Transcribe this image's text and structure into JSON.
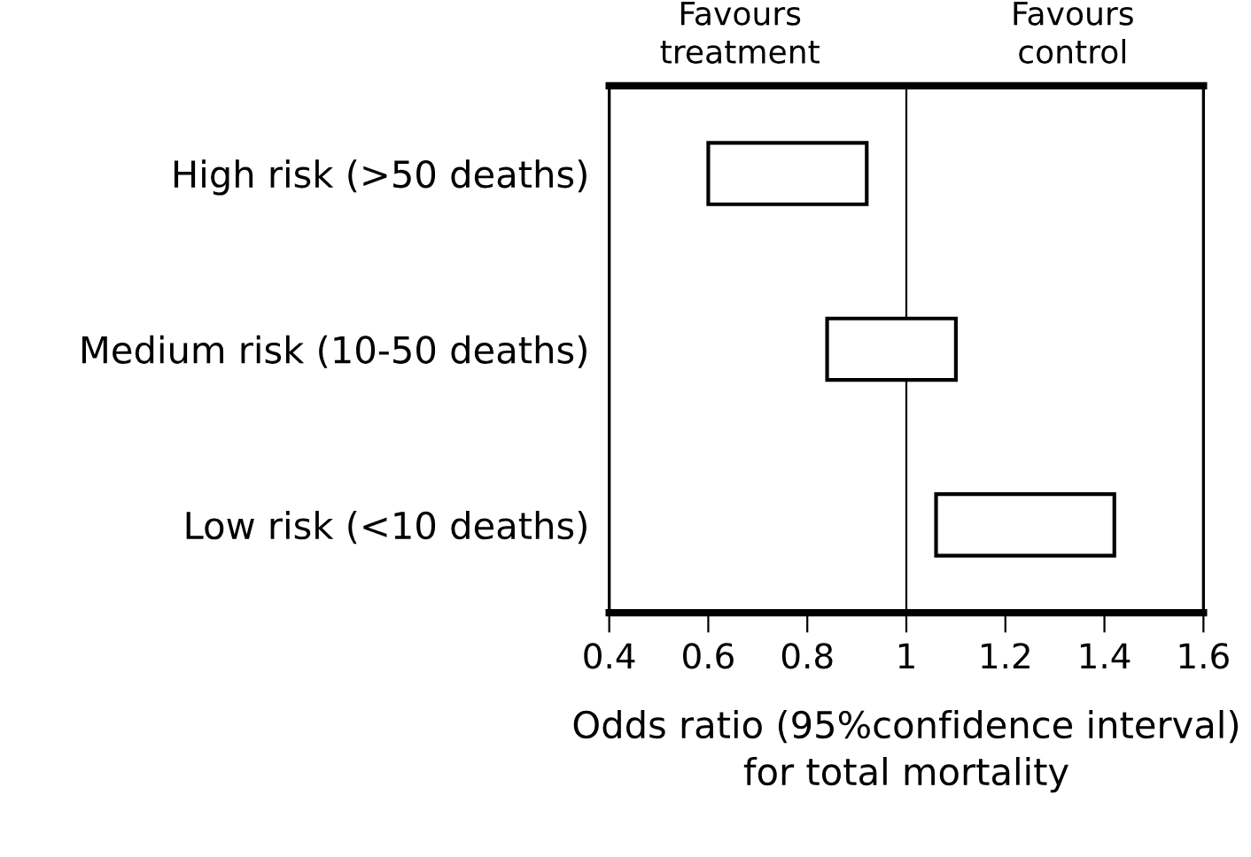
{
  "chart_data": {
    "type": "bar",
    "orientation": "horizontal",
    "categories": [
      "High risk (>50 deaths)",
      "Medium risk (10-50 deaths)",
      "Low risk (<10 deaths)"
    ],
    "base": [
      0.6,
      0.84,
      1.06
    ],
    "values": [
      0.32,
      0.26,
      0.36
    ],
    "color": "#ffffff",
    "xlim": [
      0.4,
      1.6
    ],
    "xticks": [
      0.4,
      0.6,
      0.8,
      1,
      1.2,
      1.4,
      1.6
    ],
    "xlabel": "Odds ratio (95%confidence interval) for total mortality",
    "ref_lines": [
      {
        "axis": "x",
        "value": 1,
        "color": "#000000"
      }
    ],
    "annotations": [
      "Favours\ntreatment",
      "Favours\ncontrol"
    ],
    "grid": false,
    "legend": false
  }
}
